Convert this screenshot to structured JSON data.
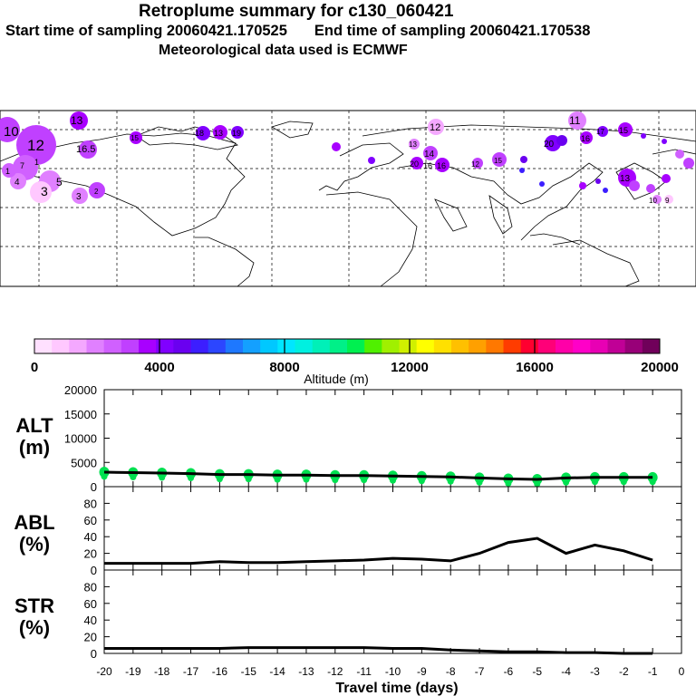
{
  "title": "Retroplume summary for c130_060421",
  "subtitle": {
    "start_label": "Start time of sampling 20060421.170525",
    "end_label": "End time of sampling 20060421.170538"
  },
  "met_line": "Meteorological data used is ECMWF",
  "colorbar": {
    "ticks": [
      "0",
      "4000",
      "8000",
      "12000",
      "16000",
      "20000"
    ],
    "label": "Altitude (m)",
    "range": [
      0,
      20000
    ],
    "colors": [
      "#ffe0ff",
      "#ffc8ff",
      "#f4a8ff",
      "#e080ff",
      "#d060ff",
      "#c040ff",
      "#a800ff",
      "#8000ff",
      "#6a00f0",
      "#3c1eff",
      "#2c46ff",
      "#1e78ff",
      "#14a0ff",
      "#00c8ff",
      "#00e6ff",
      "#00f0e0",
      "#00f0b8",
      "#00f088",
      "#00f050",
      "#50f000",
      "#a0f000",
      "#d0f000",
      "#ffff00",
      "#ffe000",
      "#ffc000",
      "#ffa000",
      "#ff7800",
      "#ff3c00",
      "#ff0030",
      "#ff0078",
      "#ff00a8",
      "#ff00c8",
      "#e800b4",
      "#c00096",
      "#980078",
      "#70005a"
    ]
  },
  "map_labels": [
    "10",
    "12",
    "13",
    "16.5",
    "5",
    "3",
    "3",
    "4",
    "1",
    "1",
    "7",
    "2",
    "12",
    "13",
    "14",
    "20",
    "16",
    "16",
    "11",
    "13",
    "15",
    "15",
    "20",
    "16",
    "17",
    "18",
    "13",
    "15",
    "19",
    "12",
    "9",
    "10"
  ],
  "chart_data": [
    {
      "type": "scatter",
      "name": "ALT",
      "ylabel": "ALT\n(m)",
      "ylabel_lines": [
        "ALT",
        "(m)"
      ],
      "xlim": [
        -20,
        0
      ],
      "ylim": [
        0,
        20000
      ],
      "yticks": [
        "0",
        "5000",
        "10000",
        "15000",
        "20000"
      ],
      "x": [
        -20,
        -19,
        -18,
        -17,
        -16,
        -15,
        -14,
        -13,
        -12,
        -11,
        -10,
        -9,
        -8,
        -7,
        -6,
        -5,
        -4,
        -3,
        -2,
        -1
      ],
      "values": [
        3000,
        2900,
        2800,
        2700,
        2500,
        2500,
        2400,
        2400,
        2300,
        2300,
        2200,
        2100,
        2000,
        1800,
        1600,
        1500,
        1800,
        1900,
        1900,
        1900
      ],
      "marker_color": "#00e050",
      "line_color": "#000000"
    },
    {
      "type": "line",
      "name": "ABL",
      "ylabel": "ABL\n(%)",
      "ylabel_lines": [
        "ABL",
        "(%)"
      ],
      "xlim": [
        -20,
        0
      ],
      "ylim": [
        0,
        100
      ],
      "yticks": [
        "0",
        "20",
        "40",
        "60",
        "80"
      ],
      "x": [
        -20,
        -19,
        -18,
        -17,
        -16,
        -15,
        -14,
        -13,
        -12,
        -11,
        -10,
        -9,
        -8,
        -7,
        -6,
        -5,
        -4,
        -3,
        -2,
        -1
      ],
      "values": [
        8,
        8,
        8,
        8,
        10,
        9,
        9,
        10,
        11,
        12,
        14,
        13,
        11,
        20,
        33,
        38,
        20,
        30,
        23,
        12
      ]
    },
    {
      "type": "line",
      "name": "STR",
      "ylabel": "STR\n(%)",
      "ylabel_lines": [
        "STR",
        "(%)"
      ],
      "xlim": [
        -20,
        0
      ],
      "ylim": [
        0,
        100
      ],
      "yticks": [
        "0",
        "20",
        "40",
        "60",
        "80"
      ],
      "x": [
        -20,
        -19,
        -18,
        -17,
        -16,
        -15,
        -14,
        -13,
        -12,
        -11,
        -10,
        -9,
        -8,
        -7,
        -6,
        -5,
        -4,
        -3,
        -2,
        -1
      ],
      "values": [
        6,
        6,
        6,
        6,
        6,
        7,
        7,
        7,
        7,
        7,
        6,
        6,
        4,
        3,
        2,
        2,
        1,
        1,
        0,
        0
      ],
      "xticks": [
        "-20",
        "-19",
        "-18",
        "-17",
        "-16",
        "-15",
        "-14",
        "-13",
        "-12",
        "-11",
        "-10",
        "-9",
        "-8",
        "-7",
        "-6",
        "-5",
        "-4",
        "-3",
        "-2",
        "-1",
        "0"
      ],
      "xlabel": "Travel time (days)"
    }
  ]
}
